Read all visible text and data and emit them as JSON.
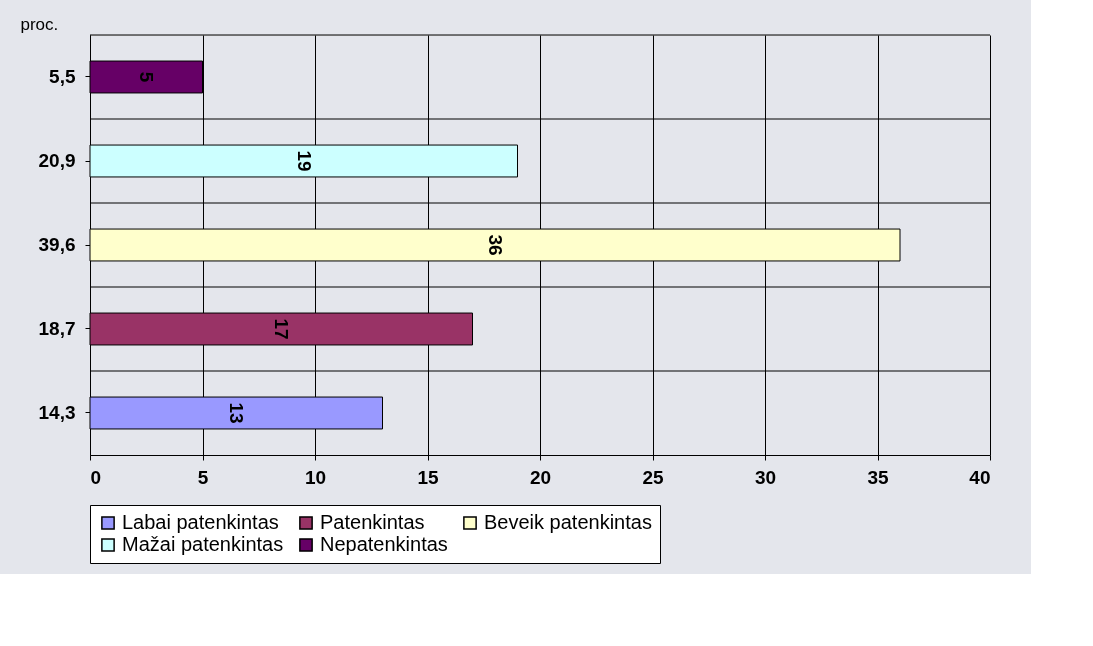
{
  "chart_data": {
    "type": "bar",
    "orientation": "horizontal",
    "ylabel": "proc.",
    "categories": [
      "5,5",
      "20,9",
      "39,6",
      "18,7",
      "14,3"
    ],
    "series": [
      {
        "name": "Labai patenkintas",
        "color": "#9999ff",
        "values": [
          null,
          null,
          null,
          null,
          13
        ]
      },
      {
        "name": "Patenkintas",
        "color": "#993366",
        "values": [
          null,
          null,
          null,
          17,
          null
        ]
      },
      {
        "name": "Beveik patenkintas",
        "color": "#ffffcc",
        "values": [
          null,
          null,
          36,
          null,
          null
        ]
      },
      {
        "name": "Mažai patenkintas",
        "color": "#ccffff",
        "values": [
          null,
          19,
          null,
          null,
          null
        ]
      },
      {
        "name": "Nepatenkintas",
        "color": "#660066",
        "values": [
          5,
          null,
          null,
          null,
          null
        ]
      }
    ],
    "xlim": [
      0,
      40
    ],
    "xticks": [
      0,
      5,
      10,
      15,
      20,
      25,
      30,
      35,
      40
    ],
    "grid": true,
    "legend": "bottom",
    "data_labels": true
  }
}
